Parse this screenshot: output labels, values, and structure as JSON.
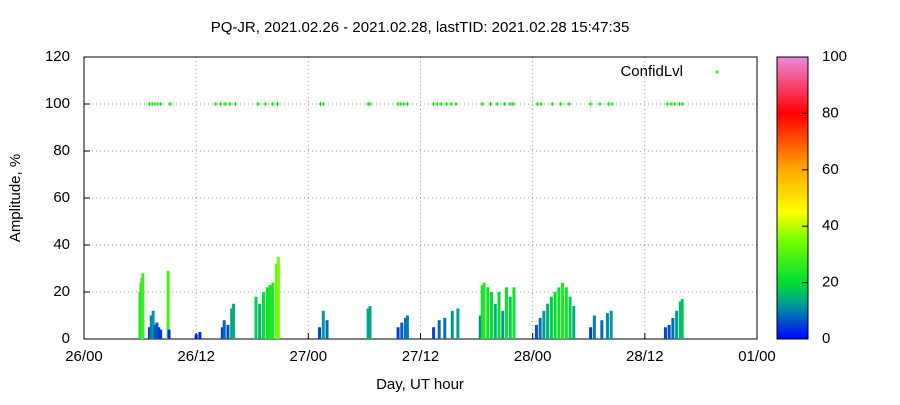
{
  "chart_data": {
    "type": "impulse",
    "title": "PQ-JR, 2021.02.26 - 2021.02.28, lastTID: 2021.02.28 15:47:35",
    "x_label": "Day, UT hour",
    "y_label": "Amplitude, %",
    "xlim": [
      0,
      72
    ],
    "xticks": [
      {
        "value": 0,
        "label": "26/00"
      },
      {
        "value": 12,
        "label": "26/12"
      },
      {
        "value": 24,
        "label": "27/00"
      },
      {
        "value": 36,
        "label": "27/12"
      },
      {
        "value": 48,
        "label": "28/00"
      },
      {
        "value": 60,
        "label": "28/12"
      },
      {
        "value": 72,
        "label": "01/00"
      }
    ],
    "ylim": [
      0,
      120
    ],
    "yticks": [
      0,
      20,
      40,
      60,
      80,
      100,
      120
    ],
    "grid": true,
    "legend": "top-right",
    "colorbar": {
      "lim": [
        0,
        100
      ],
      "ticks": [
        0,
        20,
        40,
        60,
        80,
        100
      ],
      "palette": [
        [
          0,
          "#0000ff"
        ],
        [
          12,
          "#009a9a"
        ],
        [
          20,
          "#00dd33"
        ],
        [
          35,
          "#77ff00"
        ],
        [
          45,
          "#ffff00"
        ],
        [
          60,
          "#ffaa00"
        ],
        [
          80,
          "#ff0000"
        ],
        [
          100,
          "#ee88dd"
        ]
      ]
    },
    "amplitude": {
      "x": [
        6.0,
        6.1,
        6.2,
        6.3,
        7.0,
        7.2,
        7.4,
        7.6,
        7.8,
        8.0,
        8.2,
        9.0,
        9.1,
        12.0,
        12.4,
        14.8,
        15.0,
        15.4,
        15.8,
        16.0,
        18.4,
        18.8,
        19.2,
        19.6,
        19.9,
        20.2,
        20.6,
        20.8,
        25.2,
        25.6,
        26.0,
        30.4,
        30.6,
        33.6,
        34.0,
        34.4,
        34.6,
        37.4,
        38.0,
        38.6,
        39.4,
        40.0,
        42.4,
        42.6,
        42.8,
        43.2,
        43.6,
        44.0,
        44.4,
        44.8,
        45.2,
        45.6,
        46.0,
        48.4,
        48.8,
        49.2,
        49.6,
        50.0,
        50.4,
        50.8,
        51.2,
        51.6,
        52.0,
        52.4,
        54.2,
        54.6,
        55.4,
        56.0,
        56.4,
        62.2,
        62.6,
        63.0,
        63.4,
        63.8,
        64.0
      ],
      "values": [
        20,
        24,
        26,
        28,
        5,
        10,
        12,
        6,
        7,
        5,
        4,
        29,
        4,
        2,
        3,
        5,
        8,
        6,
        13,
        15,
        18,
        15,
        20,
        22,
        23,
        24,
        32,
        35,
        5,
        12,
        8,
        13,
        14,
        5,
        7,
        9,
        10,
        5,
        8,
        9,
        12,
        13,
        10,
        23,
        24,
        22,
        20,
        15,
        20,
        12,
        22,
        18,
        22,
        6,
        9,
        12,
        15,
        18,
        20,
        22,
        24,
        22,
        18,
        14,
        5,
        10,
        8,
        11,
        12,
        5,
        6,
        9,
        12,
        16,
        17
      ]
    },
    "series": [
      {
        "name": "ConfidLvl",
        "color": "#00dd00",
        "x": [
          7.0,
          7.3,
          7.6,
          7.9,
          8.2,
          9.2,
          14.1,
          14.6,
          15.1,
          15.6,
          16.2,
          18.6,
          19.4,
          20.2,
          20.7,
          25.3,
          25.6,
          30.4,
          30.6,
          33.6,
          33.9,
          34.2,
          34.6,
          37.4,
          37.8,
          38.2,
          38.8,
          39.3,
          39.8,
          42.6,
          43.5,
          44.2,
          45.0,
          45.6,
          45.9,
          48.5,
          48.9,
          50.1,
          51.0,
          51.9,
          54.2,
          55.2,
          56.1,
          56.5,
          62.4,
          62.8,
          63.2,
          63.7,
          64.0
        ],
        "values": [
          100,
          100,
          100,
          100,
          100,
          100,
          100,
          100,
          100,
          100,
          100,
          100,
          100,
          100,
          100,
          100,
          100,
          100,
          100,
          100,
          100,
          100,
          100,
          100,
          100,
          100,
          100,
          100,
          100,
          100,
          100,
          100,
          100,
          100,
          100,
          100,
          100,
          100,
          100,
          100,
          100,
          100,
          100,
          100,
          100,
          100,
          100,
          100,
          100
        ]
      }
    ]
  }
}
